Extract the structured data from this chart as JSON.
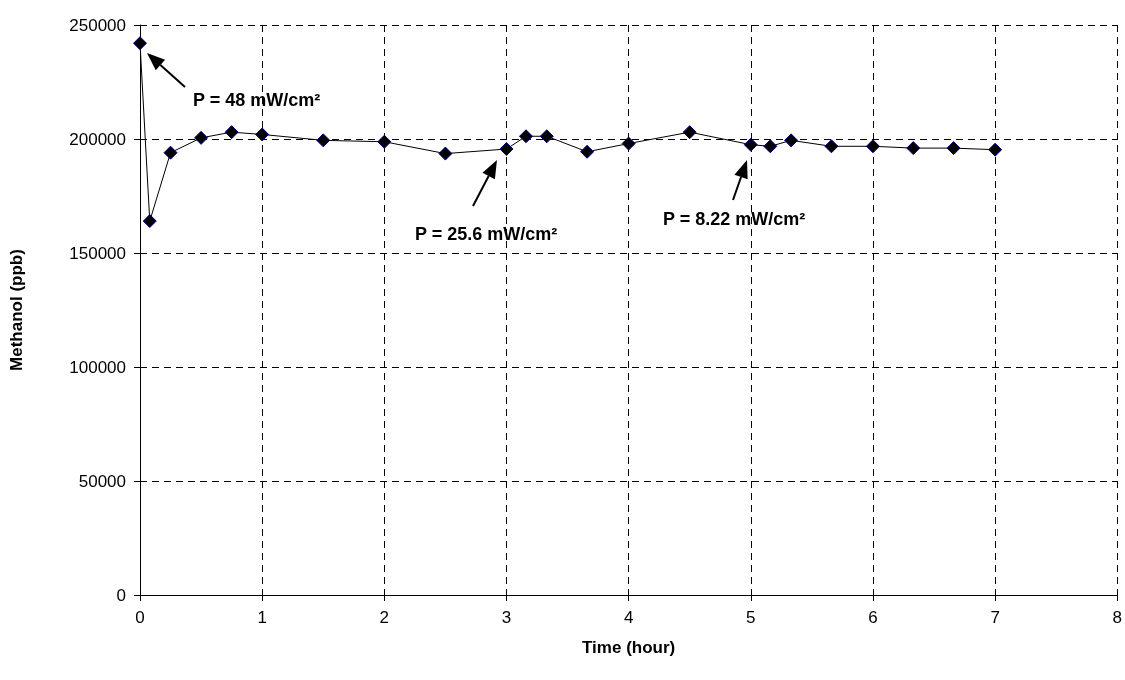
{
  "chart_data": {
    "type": "line",
    "xlabel": "Time (hour)",
    "ylabel": "Methanol (ppb)",
    "x": [
      0,
      0.08,
      0.25,
      0.5,
      0.75,
      1,
      1.5,
      2,
      2.5,
      3,
      3.16,
      3.33,
      3.66,
      4,
      4.5,
      5,
      5.16,
      5.33,
      5.66,
      6,
      6.33,
      6.66,
      7
    ],
    "series": [
      {
        "color": "#000000",
        "values": [
          242000,
          164000,
          194000,
          200500,
          203000,
          202000,
          199400,
          198800,
          193600,
          195600,
          201200,
          201200,
          194400,
          198000,
          203000,
          197500,
          196800,
          199400,
          196800,
          196800,
          196000,
          196000,
          195300
        ]
      }
    ],
    "xlim": [
      0,
      8
    ],
    "xticks": [
      0,
      1,
      2,
      3,
      4,
      5,
      6,
      7,
      8
    ],
    "ylim": [
      0,
      250000
    ],
    "yticks": [
      0,
      50000,
      100000,
      150000,
      200000,
      250000
    ],
    "grid": true,
    "marker": "diamond",
    "line_style": "solid",
    "annotations": [
      "P = 48 mW/cm²",
      "P = 25.6 mW/cm²",
      "P = 8.22 mW/cm²"
    ]
  }
}
